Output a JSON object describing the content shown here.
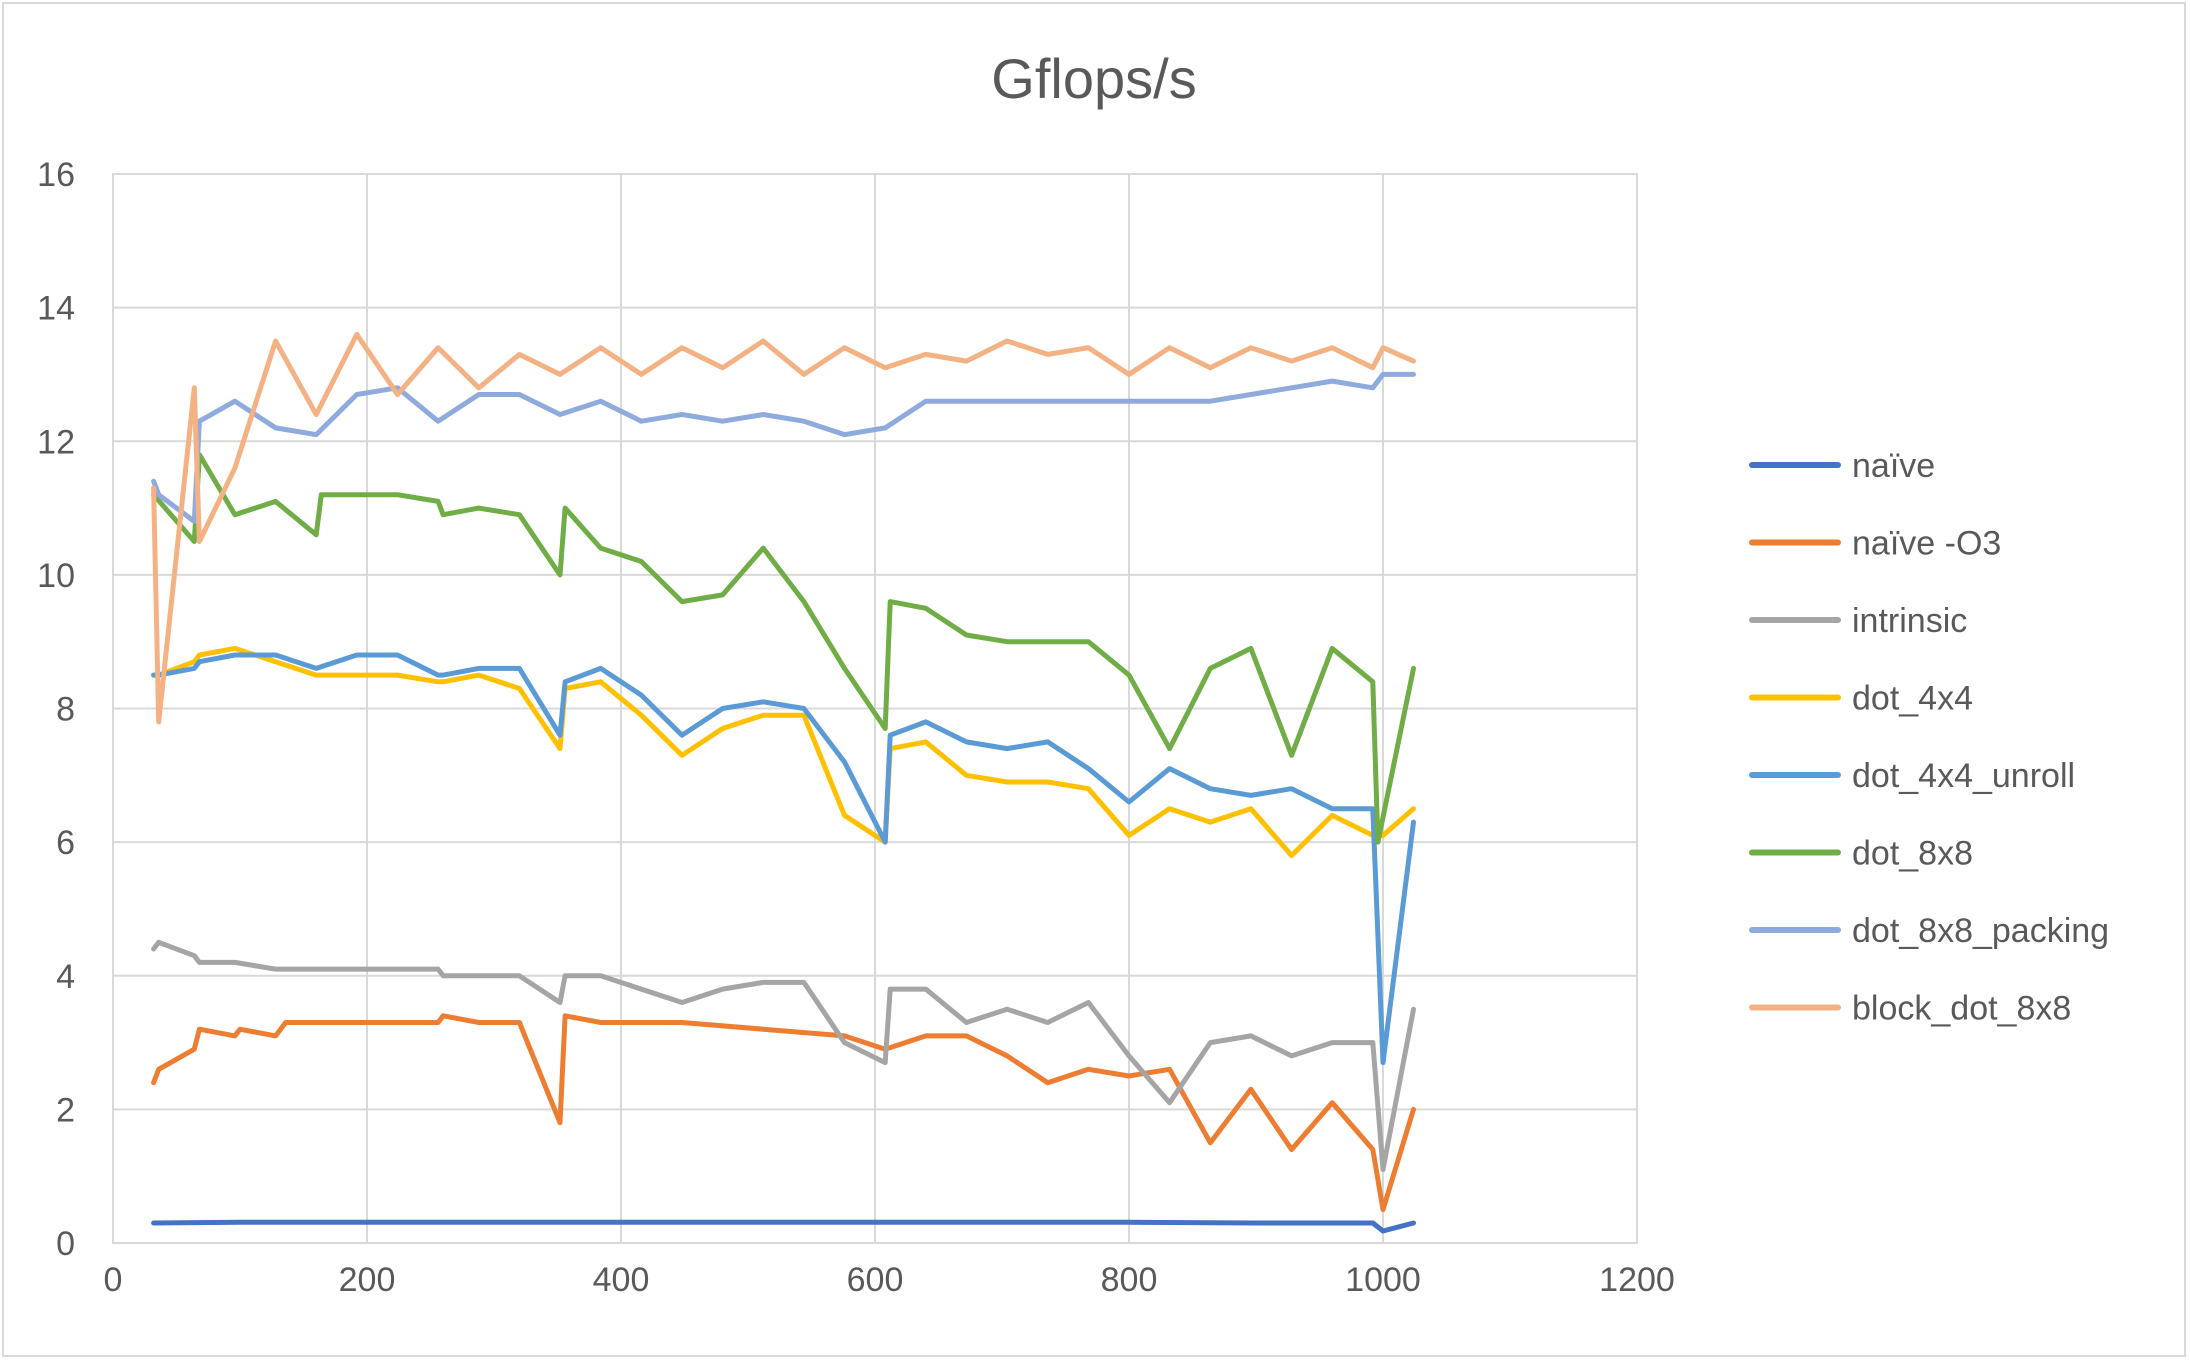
{
  "chart_data": {
    "type": "line",
    "title": "Gflops/s",
    "xlabel": "",
    "ylabel": "",
    "xlim": [
      0,
      1200
    ],
    "ylim": [
      0,
      16
    ],
    "xticks": [
      0,
      200,
      400,
      600,
      800,
      1000,
      1200
    ],
    "yticks": [
      0,
      2,
      4,
      6,
      8,
      10,
      12,
      14,
      16
    ],
    "grid": true,
    "legend_position": "right",
    "series": [
      {
        "name": "naïve",
        "color": "#4472C4",
        "x": [
          32,
          100,
          200,
          300,
          400,
          500,
          600,
          700,
          800,
          900,
          992,
          1000,
          1024
        ],
        "y": [
          0.3,
          0.31,
          0.31,
          0.31,
          0.31,
          0.31,
          0.31,
          0.31,
          0.31,
          0.3,
          0.3,
          0.18,
          0.3
        ]
      },
      {
        "name": "naïve -O3",
        "color": "#ED7D31",
        "x": [
          32,
          36,
          64,
          68,
          96,
          100,
          128,
          136,
          160,
          200,
          256,
          260,
          288,
          320,
          352,
          356,
          384,
          448,
          512,
          576,
          608,
          640,
          672,
          704,
          736,
          768,
          800,
          832,
          864,
          896,
          928,
          960,
          992,
          1000,
          1024
        ],
        "y": [
          2.4,
          2.6,
          2.9,
          3.2,
          3.1,
          3.2,
          3.1,
          3.3,
          3.3,
          3.3,
          3.3,
          3.4,
          3.3,
          3.3,
          1.8,
          3.4,
          3.3,
          3.3,
          3.2,
          3.1,
          2.9,
          3.1,
          3.1,
          2.8,
          2.4,
          2.6,
          2.5,
          2.6,
          1.5,
          2.3,
          1.4,
          2.1,
          1.4,
          0.5,
          2.0
        ]
      },
      {
        "name": "intrinsic",
        "color": "#A5A5A5",
        "x": [
          32,
          36,
          64,
          68,
          96,
          128,
          160,
          200,
          256,
          260,
          288,
          320,
          352,
          356,
          384,
          448,
          480,
          512,
          544,
          576,
          608,
          612,
          640,
          672,
          704,
          736,
          768,
          800,
          832,
          864,
          896,
          928,
          960,
          992,
          1000,
          1024
        ],
        "y": [
          4.4,
          4.5,
          4.3,
          4.2,
          4.2,
          4.1,
          4.1,
          4.1,
          4.1,
          4.0,
          4.0,
          4.0,
          3.6,
          4.0,
          4.0,
          3.6,
          3.8,
          3.9,
          3.9,
          3.0,
          2.7,
          3.8,
          3.8,
          3.3,
          3.5,
          3.3,
          3.6,
          2.8,
          2.1,
          3.0,
          3.1,
          2.8,
          3.0,
          3.0,
          1.1,
          3.5
        ]
      },
      {
        "name": "dot_4x4",
        "color": "#FFC000",
        "x": [
          32,
          36,
          64,
          68,
          96,
          128,
          160,
          192,
          224,
          256,
          260,
          288,
          320,
          352,
          356,
          384,
          416,
          448,
          480,
          512,
          544,
          576,
          608,
          612,
          640,
          672,
          704,
          736,
          768,
          800,
          832,
          864,
          896,
          928,
          960,
          992,
          1000,
          1024
        ],
        "y": [
          8.5,
          8.5,
          8.7,
          8.8,
          8.9,
          8.7,
          8.5,
          8.5,
          8.5,
          8.4,
          8.4,
          8.5,
          8.3,
          7.4,
          8.3,
          8.4,
          7.9,
          7.3,
          7.7,
          7.9,
          7.9,
          6.4,
          6.0,
          7.4,
          7.5,
          7.0,
          6.9,
          6.9,
          6.8,
          6.1,
          6.5,
          6.3,
          6.5,
          5.8,
          6.4,
          6.1,
          6.1,
          6.5
        ]
      },
      {
        "name": "dot_4x4_unroll",
        "color": "#5B9BD5",
        "x": [
          32,
          36,
          64,
          68,
          96,
          128,
          160,
          192,
          224,
          256,
          260,
          288,
          320,
          352,
          356,
          384,
          416,
          448,
          480,
          512,
          544,
          576,
          608,
          612,
          640,
          672,
          704,
          736,
          768,
          800,
          832,
          864,
          896,
          928,
          960,
          992,
          1000,
          1024
        ],
        "y": [
          8.5,
          8.5,
          8.6,
          8.7,
          8.8,
          8.8,
          8.6,
          8.8,
          8.8,
          8.5,
          8.5,
          8.6,
          8.6,
          7.6,
          8.4,
          8.6,
          8.2,
          7.6,
          8.0,
          8.1,
          8.0,
          7.2,
          6.0,
          7.6,
          7.8,
          7.5,
          7.4,
          7.5,
          7.1,
          6.6,
          7.1,
          6.8,
          6.7,
          6.8,
          6.5,
          6.5,
          2.7,
          6.3
        ]
      },
      {
        "name": "dot_8x8",
        "color": "#70AD47",
        "x": [
          32,
          64,
          68,
          96,
          128,
          160,
          164,
          192,
          224,
          256,
          260,
          288,
          320,
          352,
          356,
          384,
          416,
          448,
          480,
          512,
          544,
          576,
          608,
          612,
          640,
          672,
          704,
          736,
          768,
          800,
          832,
          864,
          896,
          928,
          960,
          992,
          996,
          1024
        ],
        "y": [
          11.2,
          10.5,
          11.8,
          10.9,
          11.1,
          10.6,
          11.2,
          11.2,
          11.2,
          11.1,
          10.9,
          11.0,
          10.9,
          10.0,
          11.0,
          10.4,
          10.2,
          9.6,
          9.7,
          10.4,
          9.6,
          8.6,
          7.7,
          9.6,
          9.5,
          9.1,
          9.0,
          9.0,
          9.0,
          8.5,
          7.4,
          8.6,
          8.9,
          7.3,
          8.9,
          8.4,
          6.0,
          8.6
        ]
      },
      {
        "name": "dot_8x8_packing",
        "color": "#8FAADC",
        "x": [
          32,
          36,
          64,
          68,
          96,
          128,
          160,
          192,
          224,
          256,
          288,
          320,
          352,
          384,
          416,
          448,
          480,
          512,
          544,
          576,
          608,
          640,
          672,
          704,
          736,
          768,
          800,
          832,
          864,
          896,
          928,
          960,
          992,
          1000,
          1024
        ],
        "y": [
          11.4,
          11.2,
          10.8,
          12.3,
          12.6,
          12.2,
          12.1,
          12.7,
          12.8,
          12.3,
          12.7,
          12.7,
          12.4,
          12.6,
          12.3,
          12.4,
          12.3,
          12.4,
          12.3,
          12.1,
          12.2,
          12.6,
          12.6,
          12.6,
          12.6,
          12.6,
          12.6,
          12.6,
          12.6,
          12.7,
          12.8,
          12.9,
          12.8,
          13.0,
          13.0
        ]
      },
      {
        "name": "block_dot_8x8",
        "color": "#F4B183",
        "x": [
          32,
          36,
          64,
          68,
          96,
          128,
          160,
          192,
          224,
          256,
          288,
          320,
          352,
          384,
          416,
          448,
          480,
          512,
          544,
          576,
          608,
          640,
          672,
          704,
          736,
          768,
          800,
          832,
          864,
          896,
          928,
          960,
          992,
          1000,
          1024
        ],
        "y": [
          11.3,
          7.8,
          12.8,
          10.5,
          11.6,
          13.5,
          12.4,
          13.6,
          12.7,
          13.4,
          12.8,
          13.3,
          13.0,
          13.4,
          13.0,
          13.4,
          13.1,
          13.5,
          13.0,
          13.4,
          13.1,
          13.3,
          13.2,
          13.5,
          13.3,
          13.4,
          13.0,
          13.4,
          13.1,
          13.4,
          13.2,
          13.4,
          13.1,
          13.4,
          13.2
        ]
      }
    ]
  }
}
